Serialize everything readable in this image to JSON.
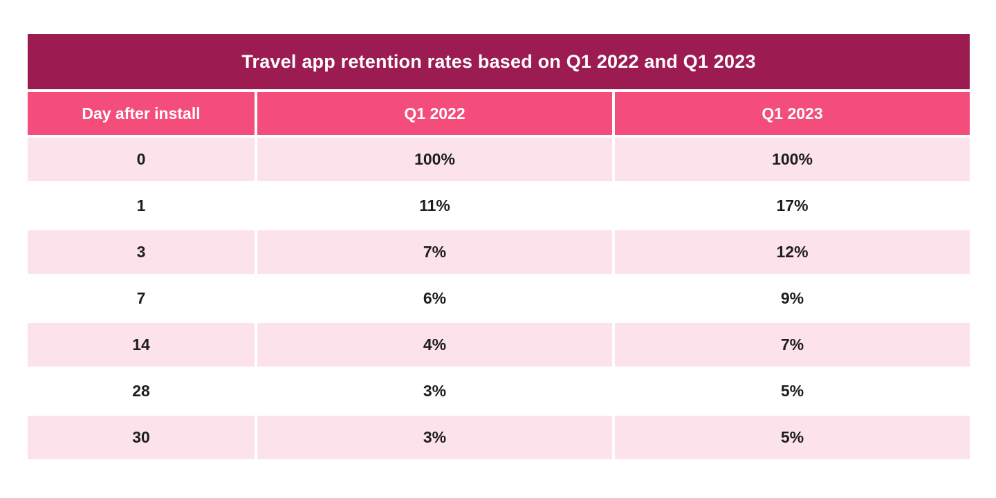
{
  "chart_data": {
    "type": "table",
    "title": "Travel app retention rates based on Q1 2022 and Q1 2023",
    "columns": [
      "Day after install",
      "Q1 2022",
      "Q1 2023"
    ],
    "rows": [
      [
        "0",
        "100%",
        "100%"
      ],
      [
        "1",
        "11%",
        "17%"
      ],
      [
        "3",
        "7%",
        "12%"
      ],
      [
        "7",
        "6%",
        "9%"
      ],
      [
        "14",
        "4%",
        "7%"
      ],
      [
        "28",
        "3%",
        "5%"
      ],
      [
        "30",
        "3%",
        "5%"
      ]
    ],
    "categories": [
      0,
      1,
      3,
      7,
      14,
      28,
      30
    ],
    "series": [
      {
        "name": "Q1 2022",
        "values": [
          100,
          11,
          7,
          6,
          4,
          3,
          3
        ]
      },
      {
        "name": "Q1 2023",
        "values": [
          100,
          17,
          12,
          9,
          7,
          5,
          5
        ]
      }
    ],
    "value_unit": "percent"
  },
  "colors": {
    "title_bg": "#9C1C51",
    "header_bg": "#F54D7B",
    "row_stripe_bg": "#FCE2EA",
    "row_plain_bg": "#FFFFFF",
    "gutter": "#FFFFFF",
    "text_light": "#FFFFFF",
    "text_dark": "#1D1D1F"
  }
}
